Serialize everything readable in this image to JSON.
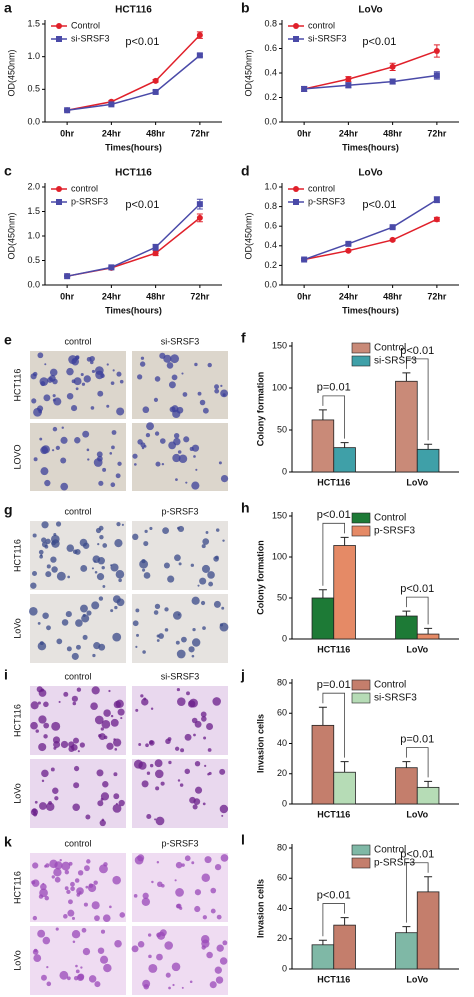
{
  "chart_data": [
    {
      "type": "line",
      "panel_label": "a",
      "title": "HCT116",
      "x_label": "Times(hours)",
      "y_label": "OD(450nm)",
      "annotation": "p<0.01",
      "categories": [
        "0hr",
        "24hr",
        "48hr",
        "72hr"
      ],
      "series": [
        {
          "name": "Control",
          "color": "#e0202a",
          "marker": "circle",
          "values": [
            0.18,
            0.31,
            0.63,
            1.33
          ],
          "errors": [
            0.01,
            0.02,
            0.02,
            0.05
          ]
        },
        {
          "name": "si-SRSF3",
          "color": "#4a4aa8",
          "marker": "square",
          "values": [
            0.18,
            0.27,
            0.46,
            1.02
          ],
          "errors": [
            0.01,
            0.01,
            0.02,
            0.02
          ]
        }
      ],
      "ylim": [
        0,
        1.5
      ],
      "yticks": [
        {
          "value": 0,
          "label": "0.0"
        },
        0.5,
        {
          "value": 1,
          "label": "1.0"
        },
        1.5
      ]
    },
    {
      "type": "line",
      "panel_label": "b",
      "title": "LoVo",
      "x_label": "Times(hours)",
      "y_label": "OD(450nm)",
      "annotation": "p<0.01",
      "categories": [
        "0hr",
        "24hr",
        "48hr",
        "72hr"
      ],
      "series": [
        {
          "name": "control",
          "color": "#e0202a",
          "marker": "circle",
          "values": [
            0.27,
            0.35,
            0.45,
            0.58
          ],
          "errors": [
            0.02,
            0.02,
            0.03,
            0.05
          ]
        },
        {
          "name": "si-SRSF3",
          "color": "#4a4aa8",
          "marker": "square",
          "values": [
            0.27,
            0.3,
            0.33,
            0.38
          ],
          "errors": [
            0.02,
            0.02,
            0.02,
            0.03
          ]
        }
      ],
      "ylim": [
        0,
        0.8
      ],
      "yticks": [
        {
          "value": 0,
          "label": "0.0"
        },
        0.2,
        0.4,
        0.6,
        0.8
      ]
    },
    {
      "type": "line",
      "panel_label": "c",
      "title": "HCT116",
      "x_label": "Times(hours)",
      "y_label": "OD(450nm)",
      "annotation": "p<0.01",
      "categories": [
        "0hr",
        "24hr",
        "48hr",
        "72hr"
      ],
      "series": [
        {
          "name": "control",
          "color": "#e0202a",
          "marker": "circle",
          "values": [
            0.18,
            0.35,
            0.65,
            1.37
          ],
          "errors": [
            0.01,
            0.02,
            0.05,
            0.08
          ]
        },
        {
          "name": "p-SRSF3",
          "color": "#4a4aa8",
          "marker": "square",
          "values": [
            0.18,
            0.36,
            0.77,
            1.65
          ],
          "errors": [
            0.01,
            0.02,
            0.06,
            0.1
          ]
        }
      ],
      "ylim": [
        0,
        2
      ],
      "yticks": [
        {
          "value": 0,
          "label": "0.0"
        },
        0.5,
        {
          "value": 1,
          "label": "1.0"
        },
        1.5,
        {
          "value": 2,
          "label": "2.0"
        }
      ]
    },
    {
      "type": "line",
      "panel_label": "d",
      "title": "LoVo",
      "x_label": "Times(hours)",
      "y_label": "OD(450nm)",
      "annotation": "p<0.01",
      "categories": [
        "0hr",
        "24hr",
        "48hr",
        "72hr"
      ],
      "series": [
        {
          "name": "control",
          "color": "#e0202a",
          "marker": "circle",
          "values": [
            0.26,
            0.35,
            0.46,
            0.67
          ],
          "errors": [
            0.01,
            0.01,
            0.01,
            0.02
          ]
        },
        {
          "name": "p-SRSF3",
          "color": "#4a4aa8",
          "marker": "square",
          "values": [
            0.26,
            0.42,
            0.59,
            0.87
          ],
          "errors": [
            0.01,
            0.01,
            0.01,
            0.03
          ]
        }
      ],
      "ylim": [
        0,
        1
      ],
      "yticks": [
        {
          "value": 0,
          "label": "0.0"
        },
        0.2,
        0.4,
        0.6,
        0.8,
        {
          "value": 1,
          "label": "1.0"
        }
      ]
    },
    {
      "type": "bar",
      "panel_label": "f",
      "y_label": "Colony formation",
      "annotations": [
        "p=0.01",
        "p<0.01"
      ],
      "categories": [
        "HCT116",
        "LoVo"
      ],
      "series": [
        {
          "name": "Control",
          "color": "#c98a78",
          "values": [
            62,
            108
          ],
          "errors": [
            12,
            10
          ]
        },
        {
          "name": "si-SRSF3",
          "color": "#3fa0a8",
          "values": [
            29,
            27
          ],
          "errors": [
            6,
            6
          ]
        }
      ],
      "ylim": [
        0,
        150
      ],
      "yticks": [
        0,
        50,
        100,
        150
      ]
    },
    {
      "type": "bar",
      "panel_label": "h",
      "y_label": "Colony formation",
      "annotations": [
        "p<0.01",
        "p<0.01"
      ],
      "categories": [
        "HCT116",
        "LoVo"
      ],
      "series": [
        {
          "name": "Control",
          "color": "#1d7a36",
          "values": [
            50,
            28
          ],
          "errors": [
            10,
            6
          ]
        },
        {
          "name": "p-SRSF3",
          "color": "#e58a66",
          "values": [
            114,
            6
          ],
          "errors": [
            10,
            7
          ]
        }
      ],
      "ylim": [
        0,
        150
      ],
      "yticks": [
        0,
        50,
        100,
        150
      ]
    },
    {
      "type": "bar",
      "panel_label": "j",
      "y_label": "Invasion cells",
      "annotations": [
        "p=0.01",
        "p=0.01"
      ],
      "categories": [
        "HCT116",
        "LoVo"
      ],
      "series": [
        {
          "name": "Control",
          "color": "#c47e6c",
          "values": [
            52,
            24
          ],
          "errors": [
            12,
            4
          ]
        },
        {
          "name": "si-SRSF3",
          "color": "#b6dcb6",
          "values": [
            21,
            11
          ],
          "errors": [
            7,
            4
          ]
        }
      ],
      "ylim": [
        0,
        80
      ],
      "yticks": [
        0,
        20,
        40,
        60,
        80
      ]
    },
    {
      "type": "bar",
      "panel_label": "l",
      "y_label": "Invasion cells",
      "annotations": [
        "p<0.01",
        "p<0.01"
      ],
      "categories": [
        "HCT116",
        "LoVo"
      ],
      "series": [
        {
          "name": "Control",
          "color": "#7fb8a6",
          "values": [
            16,
            24
          ],
          "errors": [
            3,
            4
          ]
        },
        {
          "name": "p-SRSF3",
          "color": "#c47e6c",
          "values": [
            29,
            51
          ],
          "errors": [
            5,
            10
          ]
        }
      ],
      "ylim": [
        0,
        80
      ],
      "yticks": [
        0,
        20,
        40,
        60,
        80
      ]
    }
  ],
  "image_panels": [
    {
      "label": "e",
      "columns": [
        "control",
        "si-SRSF3"
      ],
      "rows": [
        "HCT116",
        "LOVO"
      ]
    },
    {
      "label": "g",
      "columns": [
        "control",
        "p-SRSF3"
      ],
      "rows": [
        "HCT116",
        "LoVo"
      ]
    },
    {
      "label": "i",
      "columns": [
        "control",
        "si-SRSF3"
      ],
      "rows": [
        "HCT116",
        "LoVo"
      ]
    },
    {
      "label": "k",
      "columns": [
        "control",
        "p-SRSF3"
      ],
      "rows": [
        "HCT116",
        "LoVo"
      ]
    }
  ]
}
